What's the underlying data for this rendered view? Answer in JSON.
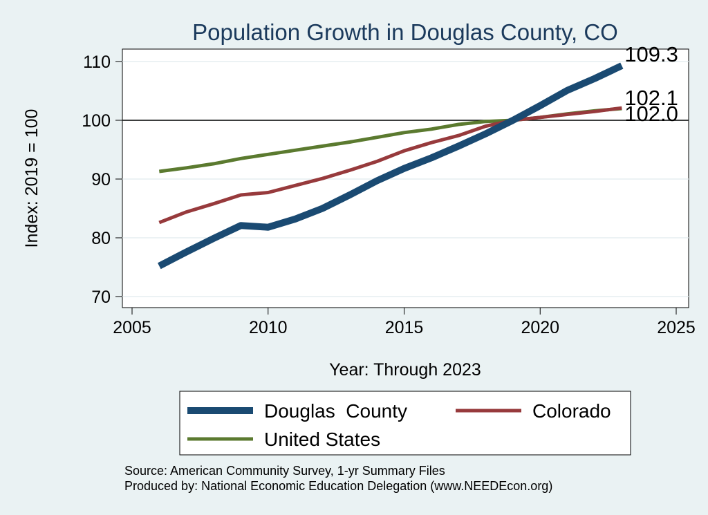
{
  "chart_data": {
    "type": "line",
    "title": "Population Growth in Douglas County, CO",
    "xlabel": "Year: Through 2023",
    "ylabel": "Index: 2019 = 100",
    "xlim": [
      2005,
      2025
    ],
    "ylim": [
      70,
      110
    ],
    "xticks": [
      "2005",
      "2010",
      "2015",
      "2020",
      "2025"
    ],
    "yticks": [
      "70",
      "80",
      "90",
      "100",
      "110"
    ],
    "reference_line": 100,
    "x": [
      2006,
      2007,
      2008,
      2009,
      2010,
      2011,
      2012,
      2013,
      2014,
      2015,
      2016,
      2017,
      2018,
      2019,
      2020,
      2021,
      2022,
      2023
    ],
    "series": [
      {
        "name": "Douglas  County",
        "color": "#1a4a72",
        "values": [
          75.2,
          77.6,
          79.9,
          82.1,
          81.8,
          83.2,
          85.0,
          87.3,
          89.7,
          91.8,
          93.6,
          95.6,
          97.7,
          100.0,
          102.5,
          105.1,
          107.1,
          109.3
        ],
        "end_label": "109.3"
      },
      {
        "name": "Colorado",
        "color": "#973a3c",
        "values": [
          82.6,
          84.4,
          85.8,
          87.3,
          87.7,
          88.9,
          90.1,
          91.5,
          93.0,
          94.8,
          96.2,
          97.4,
          99.0,
          100.0,
          100.5,
          101.0,
          101.5,
          102.1
        ],
        "end_label": "102.1"
      },
      {
        "name": "United States",
        "color": "#5b7a2f",
        "values": [
          91.3,
          91.9,
          92.6,
          93.5,
          94.2,
          94.9,
          95.6,
          96.3,
          97.1,
          97.9,
          98.5,
          99.3,
          99.8,
          100.0,
          100.5,
          101.1,
          101.6,
          102.0
        ],
        "end_label": "102.0"
      }
    ],
    "legend_position": "bottom"
  },
  "source_lines": [
    "Source: American Community Survey, 1-yr Summary Files",
    "Produced by: National Economic Education Delegation (www.NEEDEcon.org)"
  ]
}
